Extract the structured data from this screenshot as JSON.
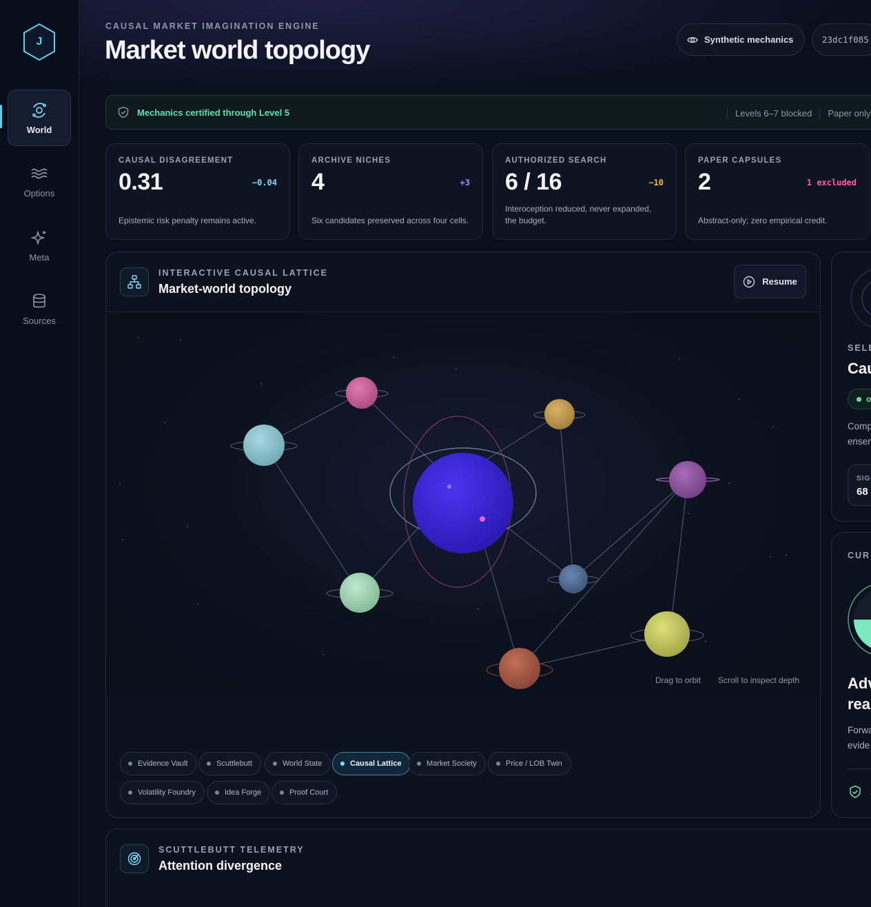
{
  "sidebar": {
    "logo_letter": "J",
    "items": [
      {
        "label": "World",
        "icon": "orbit-icon",
        "active": true
      },
      {
        "label": "Options",
        "icon": "waves-icon"
      },
      {
        "label": "Meta",
        "icon": "sparkles-icon"
      },
      {
        "label": "Sources",
        "icon": "database-icon"
      }
    ]
  },
  "header": {
    "eyebrow": "CAUSAL MARKET IMAGINATION ENGINE",
    "title": "Market world topology",
    "mechanics_button": "Synthetic mechanics",
    "hash": "23dc1f085"
  },
  "banner": {
    "text": "Mechanics certified through Level 5",
    "levels": "Levels 6–7 blocked",
    "paper": "Paper only"
  },
  "stats": [
    {
      "label": "CAUSAL DISAGREEMENT",
      "value": "0.31",
      "delta": "−0.04",
      "delta_color": "#7fd7ff",
      "note": "Epistemic risk penalty remains active."
    },
    {
      "label": "ARCHIVE NICHES",
      "value": "4",
      "delta": "+3",
      "delta_color": "#a48bff",
      "note": "Six candidates preserved across four cells."
    },
    {
      "label": "AUTHORIZED SEARCH",
      "value": "6 / 16",
      "delta": "−10",
      "delta_color": "#f2b64a",
      "note": "Interoception reduced, never expanded, the budget."
    },
    {
      "label": "PAPER CAPSULES",
      "value": "2",
      "delta": "1 excluded",
      "delta_color": "#ff5fa0",
      "note": "Abstract-only; zero empirical credit."
    }
  ],
  "lattice": {
    "eyebrow": "INTERACTIVE CAUSAL LATTICE",
    "title": "Market-world topology",
    "resume_label": "Resume",
    "hint_drag": "Drag to orbit",
    "hint_scroll": "Scroll to inspect depth",
    "chips": [
      {
        "label": "Evidence Vault"
      },
      {
        "label": "Scuttlebutt"
      },
      {
        "label": "World State"
      },
      {
        "label": "Causal Lattice",
        "active": true
      },
      {
        "label": "Market Society"
      },
      {
        "label": "Price / LOB Twin"
      },
      {
        "label": "Volatility Foundry"
      },
      {
        "label": "Idea Forge"
      },
      {
        "label": "Proof Court"
      }
    ]
  },
  "right_top": {
    "eyebrow": "SELE",
    "title": "Cau",
    "status": "o",
    "desc_line1": "Comp",
    "desc_line2": "enser",
    "metric_label": "SIGI",
    "metric_value": "68"
  },
  "right_bottom": {
    "eyebrow": "CUR",
    "title_line1": "Adv",
    "title_line2": "rea",
    "desc_line1": "Forwa",
    "desc_line2": "evide",
    "footer": "A"
  },
  "telemetry": {
    "eyebrow": "SCUTTLEBUTT TELEMETRY",
    "title": "Attention divergence"
  },
  "colors": {
    "accent": "#5ad0f0",
    "success": "#5fe0ae",
    "core": "#3a1fd0"
  }
}
